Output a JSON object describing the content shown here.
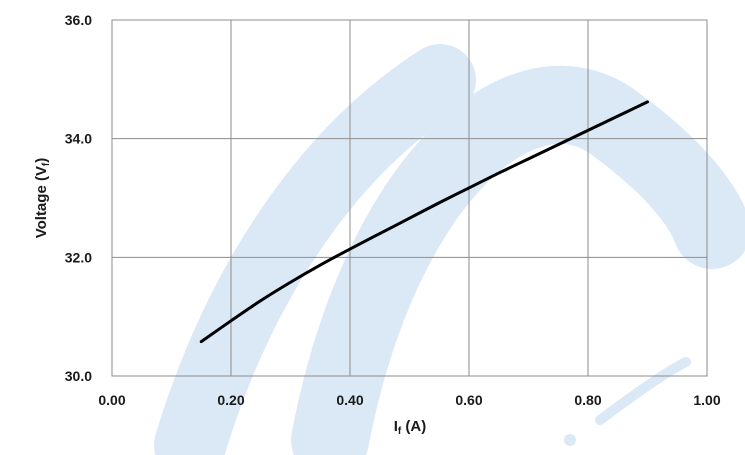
{
  "chart_data": {
    "type": "line",
    "title": "",
    "xlabel": "If (A)",
    "xlabel_main": "I",
    "xlabel_sub": "f",
    "xlabel_rest": " (A)",
    "ylabel": "Voltage (Vf)",
    "ylabel_main": "Voltage (V",
    "ylabel_sub": "f",
    "ylabel_rest": ")",
    "xlim": [
      0.0,
      1.0
    ],
    "ylim": [
      30.0,
      36.0
    ],
    "x_ticks": [
      0.0,
      0.2,
      0.4,
      0.6,
      0.8,
      1.0
    ],
    "x_tick_labels": [
      "0.00",
      "0.20",
      "0.40",
      "0.60",
      "0.80",
      "1.00"
    ],
    "y_ticks": [
      30.0,
      32.0,
      34.0,
      36.0
    ],
    "y_tick_labels": [
      "30.0",
      "32.0",
      "34.0",
      "36.0"
    ],
    "grid": true,
    "legend": "none",
    "series": [
      {
        "color": "#000000",
        "x": [
          0.15,
          0.2,
          0.25,
          0.3,
          0.35,
          0.4,
          0.45,
          0.5,
          0.55,
          0.6,
          0.65,
          0.7,
          0.75,
          0.8,
          0.85,
          0.9
        ],
        "y": [
          30.58,
          30.93,
          31.27,
          31.58,
          31.87,
          32.14,
          32.4,
          32.66,
          32.92,
          33.17,
          33.42,
          33.66,
          33.9,
          34.14,
          34.38,
          34.62
        ]
      }
    ],
    "watermark_color": "#dbe9f7"
  }
}
